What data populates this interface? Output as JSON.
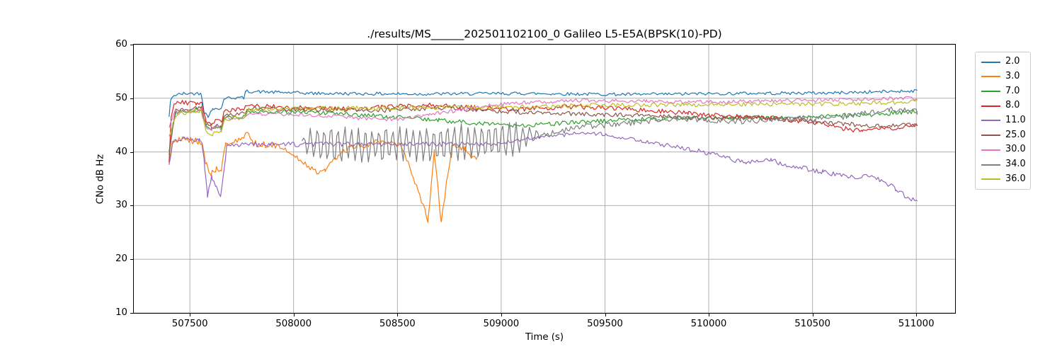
{
  "chart_data": {
    "type": "line",
    "title": "./results/MS______202501102100_0 Galileo L5-E5A(BPSK(10)-PD)",
    "xlabel": "Time (s)",
    "ylabel": "CNo dB Hz",
    "xlim": [
      507230,
      511187
    ],
    "ylim": [
      10,
      60
    ],
    "xticks": [
      507500,
      508000,
      508500,
      509000,
      509500,
      510000,
      510500,
      511000
    ],
    "yticks": [
      10,
      20,
      30,
      40,
      50,
      60
    ],
    "grid": true,
    "legend_position": "outside-upper-right",
    "series": [
      {
        "name": "2.0",
        "color": "#1f77b4",
        "noise": 0.3,
        "keypoints": [
          [
            507400,
            46.5
          ],
          [
            507406,
            49.3
          ],
          [
            507420,
            50.5
          ],
          [
            507470,
            50.9
          ],
          [
            507555,
            50.9
          ],
          [
            507570,
            47.3
          ],
          [
            507588,
            46.7
          ],
          [
            507610,
            47.9
          ],
          [
            507632,
            48.3
          ],
          [
            507650,
            48.0
          ],
          [
            507666,
            50.0
          ],
          [
            507700,
            50.1
          ],
          [
            507760,
            50.1
          ],
          [
            507770,
            51.3
          ],
          [
            508100,
            50.9
          ],
          [
            508600,
            50.8
          ],
          [
            509100,
            50.9
          ],
          [
            509650,
            50.7
          ],
          [
            510100,
            50.9
          ],
          [
            510600,
            51.0
          ],
          [
            511005,
            51.4
          ]
        ]
      },
      {
        "name": "3.0",
        "color": "#ff7f0e",
        "noise": 0.65,
        "keypoints": [
          [
            507400,
            37.6
          ],
          [
            507415,
            41.9
          ],
          [
            507460,
            42.3
          ],
          [
            507540,
            41.9
          ],
          [
            507560,
            41.6
          ],
          [
            507580,
            37.4
          ],
          [
            507602,
            36.2
          ],
          [
            507628,
            37.0
          ],
          [
            507652,
            36.1
          ],
          [
            507670,
            41.6
          ],
          [
            507705,
            42.0
          ],
          [
            507786,
            43.2
          ],
          [
            507798,
            41.6
          ],
          [
            507930,
            41.2
          ],
          [
            508020,
            38.9
          ],
          [
            508090,
            36.6
          ],
          [
            508150,
            36.4
          ],
          [
            508235,
            40.3
          ],
          [
            508330,
            41.2
          ],
          [
            508420,
            41.9
          ],
          [
            508520,
            41.2
          ],
          [
            508647,
            27.3
          ],
          [
            508678,
            40.0
          ],
          [
            508711,
            26.9
          ],
          [
            508762,
            41.0
          ],
          [
            508825,
            40.9
          ],
          [
            508857,
            38.4
          ],
          [
            508885,
            39.4
          ]
        ]
      },
      {
        "name": "7.0",
        "color": "#2ca02c",
        "noise": 0.4,
        "keypoints": [
          [
            507400,
            39.2
          ],
          [
            507418,
            45.0
          ],
          [
            507436,
            47.3
          ],
          [
            507555,
            47.9
          ],
          [
            507575,
            44.9
          ],
          [
            507600,
            44.3
          ],
          [
            507630,
            44.8
          ],
          [
            507652,
            44.5
          ],
          [
            507668,
            46.3
          ],
          [
            507760,
            46.6
          ],
          [
            507775,
            47.4
          ],
          [
            508050,
            47.4
          ],
          [
            508250,
            47.1
          ],
          [
            508450,
            46.6
          ],
          [
            508700,
            45.9
          ],
          [
            508900,
            45.3
          ],
          [
            509080,
            44.8
          ],
          [
            509300,
            45.4
          ],
          [
            509600,
            46.0
          ],
          [
            509900,
            46.3
          ],
          [
            510200,
            46.4
          ],
          [
            510500,
            46.6
          ],
          [
            510800,
            47.0
          ],
          [
            511005,
            47.6
          ]
        ]
      },
      {
        "name": "8.0",
        "color": "#d62728",
        "noise": 0.45,
        "keypoints": [
          [
            507400,
            38.0
          ],
          [
            507410,
            46.5
          ],
          [
            507425,
            49.2
          ],
          [
            507530,
            49.1
          ],
          [
            507558,
            48.9
          ],
          [
            507578,
            45.8
          ],
          [
            507605,
            45.4
          ],
          [
            507632,
            46.0
          ],
          [
            507652,
            45.6
          ],
          [
            507668,
            47.8
          ],
          [
            507760,
            48.0
          ],
          [
            507775,
            48.6
          ],
          [
            508050,
            48.2
          ],
          [
            508300,
            48.0
          ],
          [
            508600,
            48.8
          ],
          [
            508900,
            48.2
          ],
          [
            509100,
            48.0
          ],
          [
            509320,
            48.4
          ],
          [
            509600,
            48.1
          ],
          [
            509900,
            47.2
          ],
          [
            510100,
            46.7
          ],
          [
            510300,
            46.3
          ],
          [
            510500,
            45.6
          ],
          [
            510660,
            44.3
          ],
          [
            510740,
            43.9
          ],
          [
            510850,
            44.4
          ],
          [
            511005,
            44.9
          ]
        ]
      },
      {
        "name": "11.0",
        "color": "#9467bd",
        "noise": 0.45,
        "keypoints": [
          [
            507400,
            37.8
          ],
          [
            507422,
            42.3
          ],
          [
            507500,
            42.5
          ],
          [
            507545,
            42.2
          ],
          [
            507558,
            42.0
          ],
          [
            507572,
            37.0
          ],
          [
            507585,
            31.7
          ],
          [
            507605,
            35.5
          ],
          [
            507628,
            33.2
          ],
          [
            507648,
            31.3
          ],
          [
            507663,
            36.0
          ],
          [
            507678,
            41.2
          ],
          [
            507760,
            41.4
          ],
          [
            508200,
            41.4
          ],
          [
            508600,
            41.5
          ],
          [
            508900,
            41.4
          ],
          [
            509050,
            41.9
          ],
          [
            509200,
            42.9
          ],
          [
            509360,
            43.4
          ],
          [
            509500,
            43.2
          ],
          [
            509650,
            42.4
          ],
          [
            509800,
            41.2
          ],
          [
            509950,
            40.2
          ],
          [
            510100,
            38.7
          ],
          [
            510180,
            38.0
          ],
          [
            510300,
            38.4
          ],
          [
            510420,
            37.2
          ],
          [
            510550,
            36.3
          ],
          [
            510680,
            35.3
          ],
          [
            510790,
            35.4
          ],
          [
            510900,
            33.2
          ],
          [
            510960,
            31.3
          ],
          [
            511005,
            30.9
          ]
        ]
      },
      {
        "name": "25.0",
        "color": "#8c564b",
        "noise": 0.4,
        "keypoints": [
          [
            507400,
            40.2
          ],
          [
            507413,
            43.2
          ],
          [
            507430,
            47.8
          ],
          [
            507555,
            48.2
          ],
          [
            507578,
            45.0
          ],
          [
            507605,
            44.6
          ],
          [
            507632,
            45.2
          ],
          [
            507652,
            44.8
          ],
          [
            507668,
            46.9
          ],
          [
            507760,
            47.1
          ],
          [
            507778,
            48.0
          ],
          [
            508100,
            47.9
          ],
          [
            508400,
            47.7
          ],
          [
            508700,
            48.2
          ],
          [
            509000,
            47.6
          ],
          [
            509200,
            47.2
          ],
          [
            509500,
            47.0
          ],
          [
            509800,
            46.6
          ],
          [
            510000,
            46.2
          ],
          [
            510200,
            46.4
          ],
          [
            510400,
            46.1
          ],
          [
            510600,
            45.4
          ],
          [
            510800,
            44.8
          ],
          [
            510950,
            45.0
          ],
          [
            511005,
            44.9
          ]
        ]
      },
      {
        "name": "30.0",
        "color": "#e377c2",
        "noise": 0.35,
        "keypoints": [
          [
            507400,
            44.4
          ],
          [
            507428,
            47.4
          ],
          [
            507555,
            47.7
          ],
          [
            507578,
            44.6
          ],
          [
            507605,
            44.1
          ],
          [
            507632,
            44.8
          ],
          [
            507652,
            44.3
          ],
          [
            507668,
            46.2
          ],
          [
            507760,
            46.4
          ],
          [
            507778,
            47.2
          ],
          [
            508000,
            47.0
          ],
          [
            508200,
            46.7
          ],
          [
            508350,
            46.2
          ],
          [
            508500,
            46.1
          ],
          [
            508650,
            46.9
          ],
          [
            508800,
            47.8
          ],
          [
            508950,
            48.7
          ],
          [
            509100,
            49.2
          ],
          [
            509400,
            49.6
          ],
          [
            509700,
            49.4
          ],
          [
            510000,
            49.3
          ],
          [
            510300,
            49.5
          ],
          [
            510600,
            49.7
          ],
          [
            510800,
            49.9
          ],
          [
            511005,
            50.0
          ]
        ]
      },
      {
        "name": "34.0",
        "color": "#7f7f7f",
        "noise": 0.55,
        "oscillation": {
          "start": 508040,
          "end": 509200,
          "period": 33,
          "amplitude": 3.0
        },
        "keypoints": [
          [
            508040,
            41.5
          ],
          [
            508200,
            41.4
          ],
          [
            508350,
            41.1
          ],
          [
            508500,
            41.7
          ],
          [
            508650,
            41.4
          ],
          [
            508800,
            41.8
          ],
          [
            508950,
            42.0
          ],
          [
            509100,
            42.4
          ],
          [
            509250,
            43.6
          ],
          [
            509400,
            44.7
          ],
          [
            509550,
            45.2
          ],
          [
            509700,
            45.7
          ],
          [
            509850,
            46.3
          ],
          [
            510000,
            46.0
          ],
          [
            510150,
            45.7
          ],
          [
            510300,
            46.0
          ],
          [
            510450,
            46.2
          ],
          [
            510600,
            46.3
          ],
          [
            510750,
            47.2
          ],
          [
            510870,
            47.9
          ],
          [
            510950,
            47.7
          ],
          [
            511005,
            47.4
          ]
        ]
      },
      {
        "name": "36.0",
        "color": "#bcbd22",
        "noise": 0.4,
        "keypoints": [
          [
            507400,
            43.1
          ],
          [
            507418,
            45.2
          ],
          [
            507440,
            47.2
          ],
          [
            507555,
            47.6
          ],
          [
            507578,
            43.8
          ],
          [
            507605,
            43.3
          ],
          [
            507632,
            44.0
          ],
          [
            507652,
            43.6
          ],
          [
            507668,
            46.1
          ],
          [
            507760,
            46.4
          ],
          [
            507778,
            47.9
          ],
          [
            508200,
            48.1
          ],
          [
            508600,
            48.3
          ],
          [
            509000,
            48.3
          ],
          [
            509400,
            48.7
          ],
          [
            509800,
            48.8
          ],
          [
            510200,
            48.9
          ],
          [
            510600,
            49.0
          ],
          [
            510900,
            49.2
          ],
          [
            511005,
            49.5
          ]
        ]
      }
    ]
  },
  "colors": {
    "grid": "#b0b0b0",
    "axis": "#000000",
    "legend_border": "#cccccc",
    "background": "#ffffff"
  }
}
